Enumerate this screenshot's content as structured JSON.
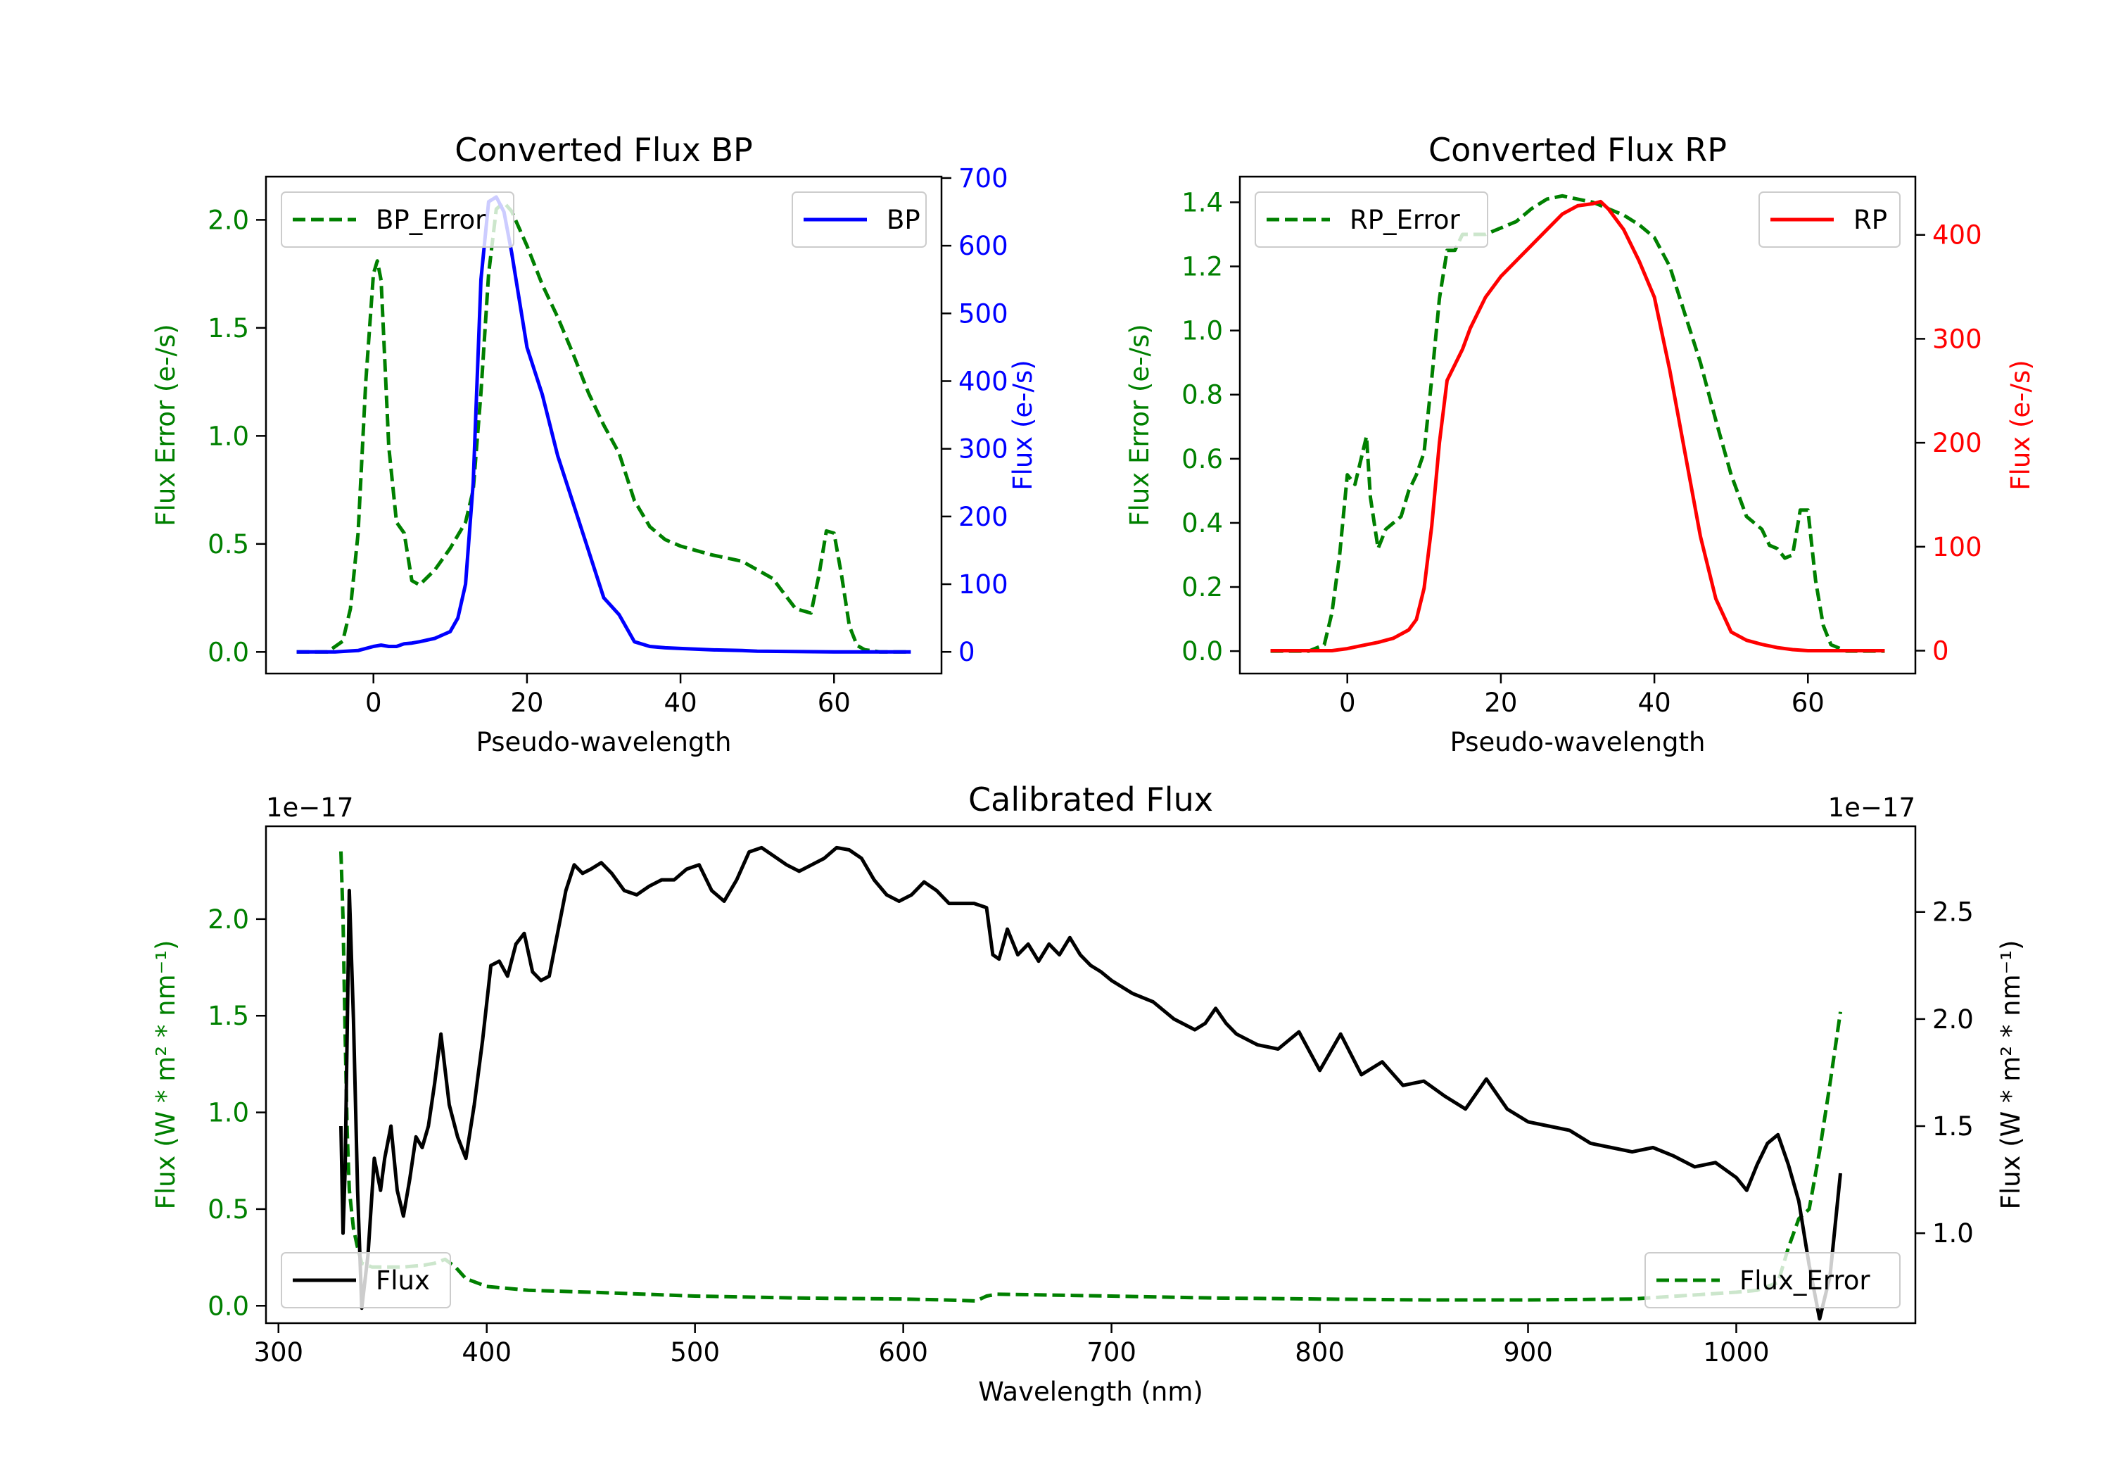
{
  "colors": {
    "error": "#008000",
    "bp": "#0000ff",
    "rp": "#ff0000",
    "flux": "#000000",
    "axis": "#000000",
    "legend_border": "#cccccc"
  },
  "chart_data": [
    {
      "id": "bp",
      "type": "line",
      "title": "Converted Flux BP",
      "xlabel": "Pseudo-wavelength",
      "ylabel_left": "Flux Error (e-/s)",
      "ylabel_right": "Flux (e-/s)",
      "xlim": [
        -14,
        74
      ],
      "ylim_left": [
        -0.1,
        2.2
      ],
      "ylim_right": [
        -32,
        702
      ],
      "xticks": [
        0,
        20,
        40,
        60
      ],
      "yticks_left": [
        0.0,
        0.5,
        1.0,
        1.5,
        2.0
      ],
      "yticks_left_labels": [
        "0.0",
        "0.5",
        "1.0",
        "1.5",
        "2.0"
      ],
      "yticks_right": [
        0,
        100,
        200,
        300,
        400,
        500,
        600,
        700
      ],
      "yticks_right_labels": [
        "0",
        "100",
        "200",
        "300",
        "400",
        "500",
        "600",
        "700"
      ],
      "legend_left": "BP_Error",
      "legend_right": "BP",
      "series": [
        {
          "name": "BP_Error",
          "axis": "left",
          "color": "error",
          "dash": true,
          "x": [
            -10,
            -8,
            -6,
            -4,
            -3,
            -2,
            -1,
            0,
            0.5,
            1,
            2,
            3,
            4,
            5,
            6,
            8,
            10,
            12,
            13,
            14,
            15,
            16,
            17,
            18,
            20,
            22,
            24,
            26,
            28,
            30,
            32,
            34,
            36,
            38,
            40,
            44,
            48,
            52,
            55,
            57,
            58,
            59,
            60,
            61,
            62,
            63,
            64,
            66,
            70
          ],
          "y": [
            0,
            0,
            0,
            0.05,
            0.2,
            0.55,
            1.25,
            1.75,
            1.81,
            1.72,
            0.95,
            0.6,
            0.55,
            0.33,
            0.31,
            0.38,
            0.48,
            0.6,
            0.75,
            1.2,
            1.75,
            2.05,
            2.08,
            2.04,
            1.88,
            1.7,
            1.55,
            1.38,
            1.2,
            1.05,
            0.92,
            0.7,
            0.58,
            0.52,
            0.49,
            0.45,
            0.42,
            0.34,
            0.2,
            0.18,
            0.35,
            0.56,
            0.55,
            0.35,
            0.12,
            0.03,
            0.01,
            0,
            0
          ]
        },
        {
          "name": "BP",
          "axis": "right",
          "color": "bp",
          "dash": false,
          "x": [
            -10,
            -5,
            -2,
            0,
            1,
            2,
            3,
            4,
            5,
            6,
            8,
            10,
            11,
            12,
            13,
            14,
            15,
            16,
            17,
            18,
            19,
            20,
            22,
            24,
            26,
            28,
            30,
            32,
            34,
            36,
            38,
            40,
            44,
            48,
            50,
            55,
            60,
            65,
            70
          ],
          "y": [
            0,
            0,
            2,
            8,
            10,
            8,
            8,
            12,
            13,
            15,
            20,
            30,
            50,
            100,
            250,
            550,
            665,
            672,
            650,
            590,
            520,
            450,
            380,
            290,
            220,
            150,
            80,
            55,
            15,
            8,
            6,
            5,
            3,
            2,
            1,
            0.5,
            0,
            0,
            0
          ]
        }
      ]
    },
    {
      "id": "rp",
      "type": "line",
      "title": "Converted Flux RP",
      "xlabel": "Pseudo-wavelength",
      "ylabel_left": "Flux Error (e-/s)",
      "ylabel_right": "Flux (e-/s)",
      "xlim": [
        -14,
        74
      ],
      "ylim_left": [
        -0.07,
        1.48
      ],
      "ylim_right": [
        -22,
        456
      ],
      "xticks": [
        0,
        20,
        40,
        60
      ],
      "yticks_left": [
        0.0,
        0.2,
        0.4,
        0.6,
        0.8,
        1.0,
        1.2,
        1.4
      ],
      "yticks_left_labels": [
        "0.0",
        "0.2",
        "0.4",
        "0.6",
        "0.8",
        "1.0",
        "1.2",
        "1.4"
      ],
      "yticks_right": [
        0,
        100,
        200,
        300,
        400
      ],
      "yticks_right_labels": [
        "0",
        "100",
        "200",
        "300",
        "400"
      ],
      "legend_left": "RP_Error",
      "legend_right": "RP",
      "series": [
        {
          "name": "RP_Error",
          "axis": "left",
          "color": "error",
          "dash": true,
          "x": [
            -10,
            -5,
            -3,
            -2,
            -1,
            0,
            1,
            2,
            2.5,
            3,
            4,
            5,
            6,
            7,
            8,
            9,
            10,
            11,
            12,
            13,
            14,
            15,
            16,
            18,
            20,
            22,
            24,
            26,
            28,
            30,
            32,
            34,
            36,
            38,
            40,
            42,
            44,
            46,
            48,
            50,
            52,
            54,
            55,
            56,
            57,
            58,
            59,
            60,
            61,
            62,
            63,
            65,
            70
          ],
          "y": [
            0,
            0,
            0.02,
            0.12,
            0.3,
            0.55,
            0.52,
            0.62,
            0.67,
            0.48,
            0.32,
            0.38,
            0.4,
            0.42,
            0.5,
            0.55,
            0.62,
            0.85,
            1.1,
            1.25,
            1.25,
            1.3,
            1.3,
            1.3,
            1.32,
            1.34,
            1.38,
            1.41,
            1.42,
            1.41,
            1.4,
            1.38,
            1.36,
            1.33,
            1.29,
            1.2,
            1.05,
            0.9,
            0.72,
            0.55,
            0.42,
            0.38,
            0.33,
            0.32,
            0.29,
            0.3,
            0.44,
            0.44,
            0.22,
            0.08,
            0.02,
            0,
            0
          ]
        },
        {
          "name": "RP",
          "axis": "right",
          "color": "rp",
          "dash": false,
          "x": [
            -10,
            -5,
            -2,
            0,
            2,
            4,
            6,
            8,
            9,
            10,
            11,
            12,
            13,
            14,
            15,
            16,
            18,
            20,
            22,
            24,
            26,
            28,
            30,
            32,
            33,
            34,
            36,
            38,
            40,
            42,
            44,
            46,
            48,
            50,
            52,
            54,
            56,
            58,
            60,
            62,
            65,
            70
          ],
          "y": [
            0,
            0,
            0,
            2,
            5,
            8,
            12,
            20,
            30,
            60,
            120,
            200,
            260,
            275,
            290,
            310,
            340,
            360,
            375,
            390,
            405,
            420,
            428,
            430,
            432,
            425,
            405,
            375,
            340,
            270,
            190,
            110,
            50,
            18,
            10,
            6,
            3,
            1,
            0,
            0,
            0,
            0
          ]
        }
      ]
    },
    {
      "id": "cal",
      "type": "line",
      "title": "Calibrated Flux",
      "xlabel": "Wavelength (nm)",
      "ylabel_left": "Flux (W * m² * nm⁻¹)",
      "ylabel_right": "Flux (W * m² * nm⁻¹)",
      "offset_left": "1e−17",
      "offset_right": "1e−17",
      "xlim": [
        294,
        1086
      ],
      "ylim_left": [
        -0.09,
        2.48
      ],
      "ylim_right": [
        0.58,
        2.9
      ],
      "xticks": [
        300,
        400,
        500,
        600,
        700,
        800,
        900,
        1000
      ],
      "yticks_left": [
        0.0,
        0.5,
        1.0,
        1.5,
        2.0
      ],
      "yticks_left_labels": [
        "0.0",
        "0.5",
        "1.0",
        "1.5",
        "2.0"
      ],
      "yticks_right": [
        1.0,
        1.5,
        2.0,
        2.5
      ],
      "yticks_right_labels": [
        "1.0",
        "1.5",
        "2.0",
        "2.5"
      ],
      "legend_left": "Flux",
      "legend_right": "Flux_Error",
      "series": [
        {
          "name": "Flux_Error",
          "axis": "left",
          "color": "error",
          "dash": true,
          "x": [
            330,
            331,
            332,
            333,
            334,
            336,
            338,
            340,
            345,
            350,
            360,
            370,
            375,
            380,
            385,
            390,
            400,
            420,
            450,
            500,
            550,
            600,
            620,
            635,
            640,
            645,
            700,
            750,
            800,
            850,
            900,
            950,
            1000,
            1010,
            1020,
            1025,
            1030,
            1035,
            1040,
            1045,
            1050
          ],
          "y": [
            2.35,
            2.0,
            1.4,
            0.9,
            0.6,
            0.4,
            0.3,
            0.22,
            0.2,
            0.2,
            0.2,
            0.21,
            0.22,
            0.24,
            0.2,
            0.14,
            0.1,
            0.08,
            0.07,
            0.05,
            0.04,
            0.035,
            0.03,
            0.025,
            0.05,
            0.06,
            0.05,
            0.04,
            0.035,
            0.03,
            0.03,
            0.035,
            0.07,
            0.08,
            0.12,
            0.3,
            0.45,
            0.5,
            0.8,
            1.15,
            1.52
          ]
        },
        {
          "name": "Flux",
          "axis": "right",
          "color": "flux",
          "dash": false,
          "x": [
            330,
            331,
            332,
            334,
            336,
            338,
            340,
            343,
            346,
            349,
            351,
            354,
            357,
            360,
            363,
            366,
            369,
            372,
            375,
            378,
            382,
            386,
            390,
            394,
            398,
            402,
            406,
            410,
            414,
            418,
            422,
            426,
            430,
            434,
            438,
            442,
            446,
            450,
            455,
            460,
            466,
            472,
            478,
            484,
            490,
            496,
            502,
            508,
            514,
            520,
            526,
            532,
            538,
            544,
            550,
            556,
            562,
            568,
            574,
            580,
            586,
            592,
            598,
            604,
            610,
            616,
            622,
            628,
            634,
            640,
            643,
            646,
            650,
            655,
            660,
            665,
            670,
            675,
            680,
            685,
            690,
            695,
            700,
            710,
            720,
            730,
            740,
            745,
            750,
            755,
            760,
            770,
            780,
            790,
            800,
            810,
            820,
            830,
            840,
            850,
            860,
            870,
            880,
            890,
            900,
            910,
            920,
            930,
            940,
            950,
            960,
            970,
            980,
            990,
            1000,
            1005,
            1010,
            1015,
            1020,
            1025,
            1030,
            1035,
            1040,
            1045,
            1050
          ],
          "y": [
            1.5,
            1.0,
            1.3,
            2.6,
            2.0,
            1.2,
            0.65,
            0.9,
            1.35,
            1.2,
            1.35,
            1.5,
            1.2,
            1.08,
            1.25,
            1.45,
            1.4,
            1.5,
            1.7,
            1.93,
            1.6,
            1.45,
            1.35,
            1.6,
            1.9,
            2.25,
            2.27,
            2.2,
            2.35,
            2.4,
            2.22,
            2.18,
            2.2,
            2.4,
            2.6,
            2.72,
            2.68,
            2.7,
            2.73,
            2.68,
            2.6,
            2.58,
            2.62,
            2.65,
            2.65,
            2.7,
            2.72,
            2.6,
            2.55,
            2.65,
            2.78,
            2.8,
            2.76,
            2.72,
            2.69,
            2.72,
            2.75,
            2.8,
            2.79,
            2.75,
            2.65,
            2.58,
            2.55,
            2.58,
            2.64,
            2.6,
            2.54,
            2.54,
            2.54,
            2.52,
            2.3,
            2.28,
            2.42,
            2.3,
            2.35,
            2.27,
            2.35,
            2.3,
            2.38,
            2.3,
            2.25,
            2.22,
            2.18,
            2.12,
            2.08,
            2.0,
            1.95,
            1.98,
            2.05,
            1.98,
            1.93,
            1.88,
            1.86,
            1.94,
            1.76,
            1.93,
            1.74,
            1.8,
            1.69,
            1.71,
            1.64,
            1.58,
            1.72,
            1.58,
            1.52,
            1.5,
            1.48,
            1.42,
            1.4,
            1.38,
            1.4,
            1.36,
            1.31,
            1.33,
            1.26,
            1.2,
            1.32,
            1.42,
            1.46,
            1.32,
            1.15,
            0.85,
            0.6,
            0.8,
            1.28
          ]
        }
      ]
    }
  ]
}
